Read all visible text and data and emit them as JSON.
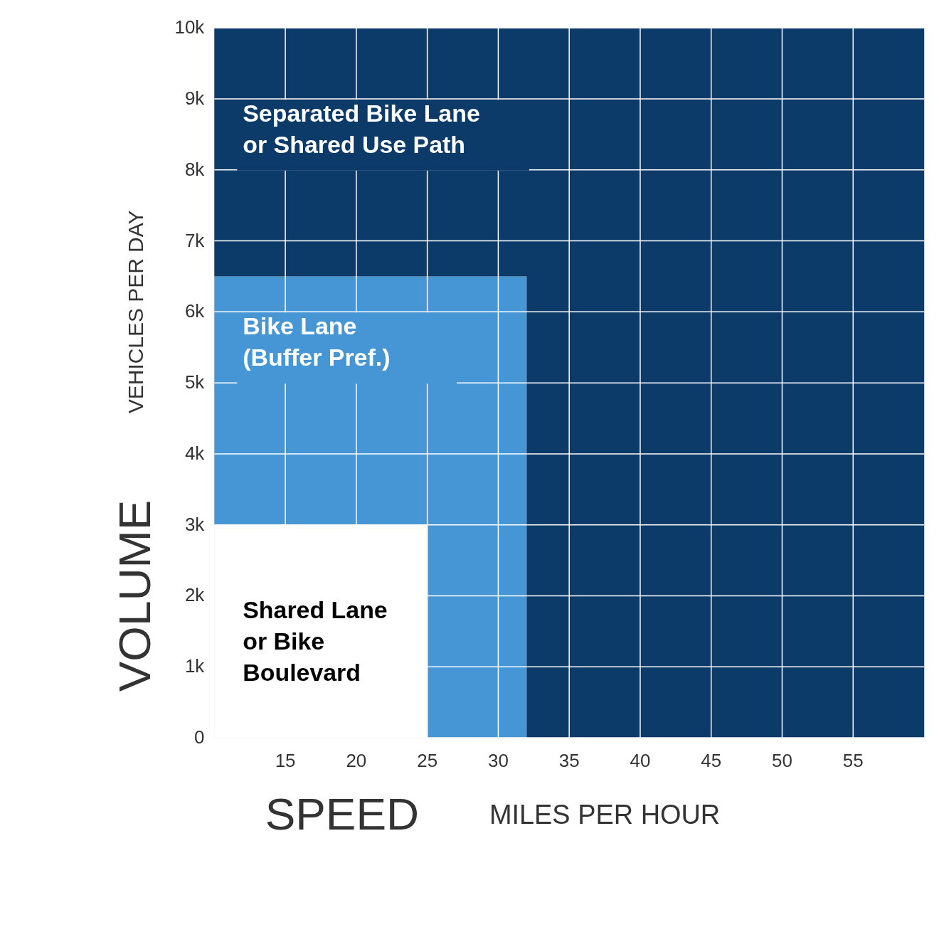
{
  "chart_data": {
    "type": "area",
    "xlabel": "SPEED",
    "ylabel": "VOLUME",
    "annotations": [
      "VEHICLES PER DAY",
      "MILES PER HOUR"
    ],
    "xlim": [
      10,
      60
    ],
    "xticks": [
      15,
      20,
      25,
      30,
      35,
      40,
      45,
      50,
      55
    ],
    "ylim": [
      0,
      10000
    ],
    "yticks": [
      0,
      {
        "value": 1000,
        "label": "1k"
      },
      {
        "value": 2000,
        "label": "2k"
      },
      {
        "value": 3000,
        "label": "3k"
      },
      {
        "value": 4000,
        "label": "4k"
      },
      {
        "value": 5000,
        "label": "5k"
      },
      {
        "value": 6000,
        "label": "6k"
      },
      {
        "value": 7000,
        "label": "7k"
      },
      {
        "value": 8000,
        "label": "8k"
      },
      {
        "value": 9000,
        "label": "9k"
      },
      {
        "value": 10000,
        "label": "10k"
      }
    ],
    "grid": true,
    "stacked": true,
    "x": [
      10,
      25,
      25,
      32,
      32,
      60
    ],
    "series": [
      {
        "name": "Shared Lane\nor Bike\nBoulevard",
        "color": "#ffffff",
        "values": [
          3000,
          3000,
          0,
          0,
          0,
          0
        ]
      },
      {
        "name": "Bike Lane\n(Buffer Pref.)",
        "color": "#4696d6",
        "values": [
          3500,
          3500,
          6500,
          6500,
          0,
          0
        ]
      },
      {
        "name": "Separated Bike Lane\nor Shared Use Path",
        "color": "#0c3b6a",
        "values": [
          3500,
          3500,
          3500,
          3500,
          10000,
          10000
        ]
      }
    ]
  }
}
